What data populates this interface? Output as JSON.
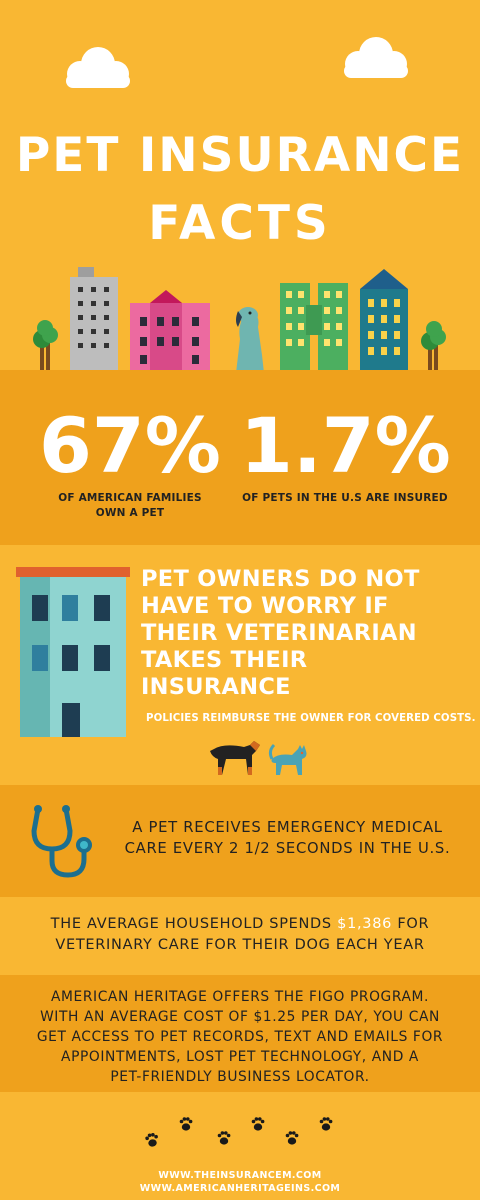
{
  "hero": {
    "title_line1": "PET INSURANCE",
    "title_line2": "FACTS"
  },
  "stats": [
    {
      "value": "67%",
      "label_line1": "OF AMERICAN FAMILIES",
      "label_line2": "OWN A PET"
    },
    {
      "value": "1.7%",
      "label_line1": "OF PETS IN THE U.S ARE INSURED"
    }
  ],
  "vet_section": {
    "heading_lines": [
      "PET OWNERS DO NOT",
      "HAVE TO WORRY IF",
      "THEIR VETERINARIAN",
      "TAKES THEIR",
      "INSURANCE"
    ],
    "subtext": "POLICIES REIMBURSE THE OWNER FOR COVERED COSTS."
  },
  "emergency": {
    "line1": "A PET RECEIVES EMERGENCY MEDICAL",
    "line2": "CARE EVERY 2 1/2 SECONDS IN THE U.S."
  },
  "spending": {
    "pre": "THE AVERAGE HOUSEHOLD SPENDS",
    "amount": "$1,386",
    "post": "FOR",
    "line2": "VETERINARY CARE FOR THEIR DOG EACH YEAR"
  },
  "figo": {
    "lines": [
      "AMERICAN HERITAGE OFFERS THE FIGO PROGRAM.",
      "WITH AN AVERAGE COST OF $1.25 PER DAY, YOU CAN",
      "GET ACCESS TO PET RECORDS, TEXT AND EMAILS FOR",
      "APPOINTMENTS, LOST PET TECHNOLOGY, AND A",
      "PET-FRIENDLY BUSINESS LOCATOR."
    ]
  },
  "footer": {
    "url1": "WWW.THEINSURANCEM.COM",
    "url2": "WWW.AMERICANHERITAGEINS.COM"
  },
  "icons": [
    "cloud-icon",
    "building-icon",
    "tree-icon",
    "dog-icon",
    "cat-icon",
    "stethoscope-icon",
    "paw-icon"
  ],
  "colors": {
    "background": "#F9B733",
    "band": "#EFA11C",
    "text_dark": "#222222",
    "text_light": "#FFFFFF"
  }
}
